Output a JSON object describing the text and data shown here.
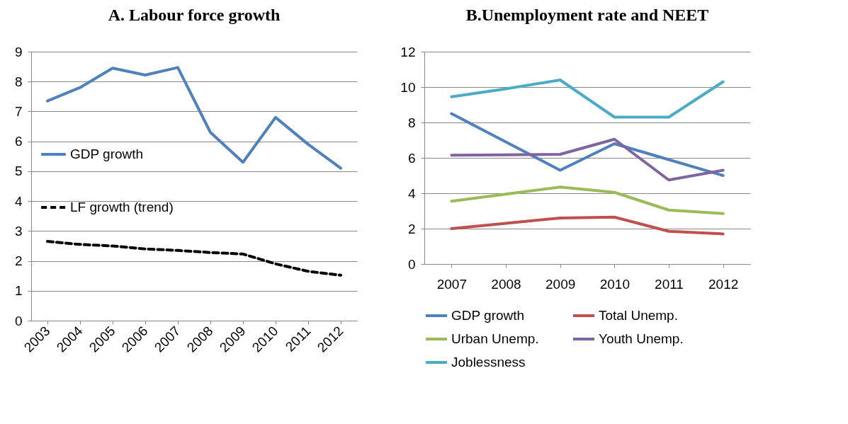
{
  "chart_data": [
    {
      "type": "line",
      "title": "A.  Labour force growth",
      "categories": [
        "2003",
        "2004",
        "2005",
        "2006",
        "2007",
        "2008",
        "2009",
        "2010",
        "2011",
        "2012"
      ],
      "series": [
        {
          "name": "GDP growth",
          "color": "#4f81bd",
          "line_style": "solid",
          "values": [
            7.35,
            7.8,
            8.45,
            8.22,
            8.47,
            6.3,
            5.3,
            6.8,
            5.9,
            5.1
          ]
        },
        {
          "name": "LF growth (trend)",
          "color": "#000000",
          "line_style": "dashed",
          "values": [
            2.65,
            2.55,
            2.5,
            2.4,
            2.35,
            2.28,
            2.23,
            1.9,
            1.65,
            1.52
          ]
        }
      ],
      "ylim": [
        0,
        9
      ],
      "yticks": [
        0,
        1,
        2,
        3,
        4,
        5,
        6,
        7,
        8,
        9
      ],
      "grid": "y",
      "legend": "left"
    },
    {
      "type": "line",
      "title": "B.Unemployment rate and NEET",
      "categories": [
        "2007",
        "2008",
        "2009",
        "2010",
        "2011",
        "2012"
      ],
      "series": [
        {
          "name": "GDP growth",
          "color": "#4f81bd",
          "line_style": "solid",
          "values": [
            8.5,
            6.9,
            5.3,
            6.8,
            5.9,
            5.0
          ]
        },
        {
          "name": "Total Unemp.",
          "color": "#c0504d",
          "line_style": "solid",
          "values": [
            2.0,
            2.3,
            2.6,
            2.65,
            1.85,
            1.7
          ]
        },
        {
          "name": "Urban Unemp.",
          "color": "#9bbb59",
          "line_style": "solid",
          "values": [
            3.55,
            3.95,
            4.35,
            4.05,
            3.05,
            2.85
          ]
        },
        {
          "name": "Youth Unemp.",
          "color": "#8064a2",
          "line_style": "solid",
          "values": [
            6.15,
            6.17,
            6.2,
            7.05,
            4.75,
            5.3
          ]
        },
        {
          "name": "Joblessness",
          "color": "#4bacc6",
          "line_style": "solid",
          "values": [
            9.45,
            9.9,
            10.4,
            8.3,
            8.3,
            10.3
          ]
        }
      ],
      "ylim": [
        0,
        12
      ],
      "yticks": [
        0,
        2,
        4,
        6,
        8,
        10,
        12
      ],
      "grid": "y",
      "legend": "bottom"
    }
  ]
}
